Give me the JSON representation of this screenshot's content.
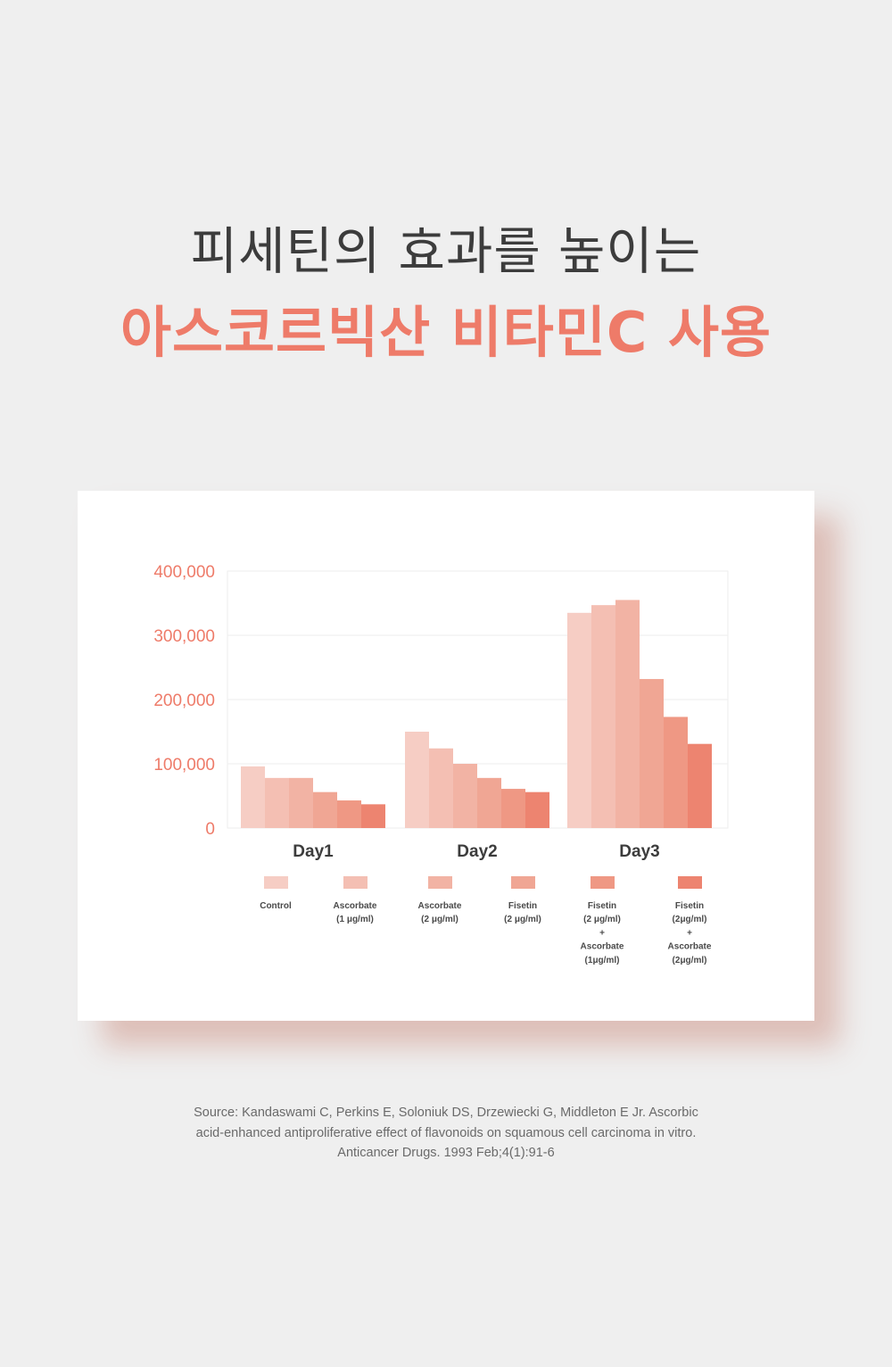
{
  "headline": {
    "line1": "피세틴의 효과를 높이는",
    "line2": "아스코르빅산 비타민C 사용"
  },
  "colors": {
    "accent": "#ee7b69",
    "headline_dark": "#3c3c3c",
    "series": [
      "#f6cdc4",
      "#f4bfb3",
      "#f2b3a4",
      "#f0a694",
      "#ef9884",
      "#ed8470"
    ]
  },
  "chart_data": {
    "type": "bar",
    "categories": [
      "Day1",
      "Day2",
      "Day3"
    ],
    "ylim": [
      0,
      400000
    ],
    "yticks": [
      0,
      100000,
      200000,
      300000,
      400000
    ],
    "ytick_labels": [
      "0",
      "100,000",
      "200,000",
      "300,000",
      "400,000"
    ],
    "grid": true,
    "legend_position": "bottom",
    "series": [
      {
        "name": "Control",
        "legend_lines": [
          "Control"
        ],
        "values": [
          96000,
          150000,
          335000
        ]
      },
      {
        "name": "Ascorbate (1 μg/ml)",
        "legend_lines": [
          "Ascorbate",
          "(1 μg/ml)"
        ],
        "values": [
          78000,
          124000,
          347000
        ]
      },
      {
        "name": "Ascorbate (2 μg/ml)",
        "legend_lines": [
          "Ascorbate",
          "(2 μg/ml)"
        ],
        "values": [
          78000,
          100000,
          355000
        ]
      },
      {
        "name": "Fisetin (2 μg/ml)",
        "legend_lines": [
          "Fisetin",
          "(2 μg/ml)"
        ],
        "values": [
          56000,
          78000,
          232000
        ]
      },
      {
        "name": "Fisetin (2 μg/ml) + Ascorbate (1μg/ml)",
        "legend_lines": [
          "Fisetin",
          "(2 μg/ml)",
          "+",
          "Ascorbate",
          "(1μg/ml)"
        ],
        "values": [
          43000,
          61000,
          173000
        ]
      },
      {
        "name": "Fisetin (2μg/ml) + Ascorbate (2μg/ml)",
        "legend_lines": [
          "Fisetin",
          "(2μg/ml)",
          "+",
          "Ascorbate",
          "(2μg/ml)"
        ],
        "values": [
          37000,
          56000,
          131000
        ]
      }
    ]
  },
  "source": {
    "lines": [
      "Source: Kandaswami C, Perkins E, Soloniuk DS, Drzewiecki G, Middleton E Jr. Ascorbic",
      "acid-enhanced antiproliferative effect of flavonoids on squamous cell carcinoma in vitro.",
      "Anticancer Drugs. 1993 Feb;4(1):91-6"
    ]
  }
}
